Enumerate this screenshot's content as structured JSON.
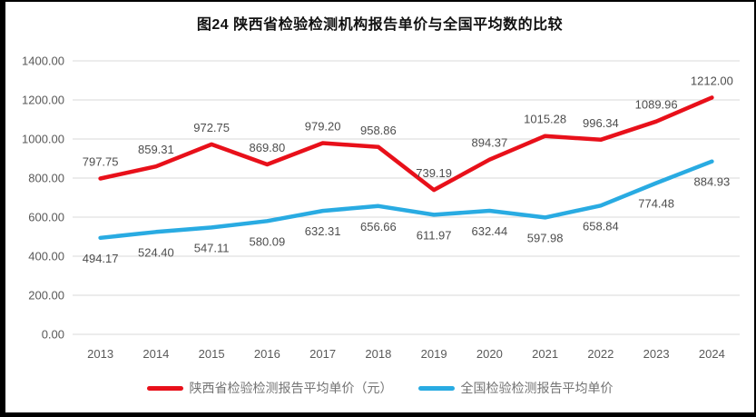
{
  "chart_data": {
    "type": "line",
    "title": "图24 陕西省检验检测机构报告单价与全国平均数的比较",
    "categories": [
      "2013",
      "2014",
      "2015",
      "2016",
      "2017",
      "2018",
      "2019",
      "2020",
      "2021",
      "2022",
      "2023",
      "2024"
    ],
    "series": [
      {
        "name": "陕西省检验检测报告平均单价（元）",
        "color": "#e8101a",
        "values": [
          797.75,
          859.31,
          972.75,
          869.8,
          979.2,
          958.86,
          739.19,
          894.37,
          1015.28,
          996.34,
          1089.96,
          1212.0
        ],
        "label_position": "above"
      },
      {
        "name": "全国检验检测报告平均单价",
        "color": "#29abe2",
        "values": [
          494.17,
          524.4,
          547.11,
          580.09,
          632.31,
          656.66,
          611.97,
          632.44,
          597.98,
          658.84,
          774.48,
          884.93
        ],
        "label_position": "below"
      }
    ],
    "ylim": [
      0,
      1400
    ],
    "ytick_step": 200,
    "ytick_labels": [
      "0.00",
      "200.00",
      "400.00",
      "600.00",
      "800.00",
      "1000.00",
      "1200.00",
      "1400.00"
    ],
    "value_format_decimals": 2,
    "grid": "horizontal-gridlines",
    "legend_position": "bottom"
  },
  "colors": {
    "gridline": "#d9d9d9",
    "axis_text": "#595959",
    "data_label_text": "#4d4d4d",
    "title_text": "#111111",
    "legend_text": "#737373",
    "frame_border": "#000000",
    "background": "#ffffff"
  }
}
